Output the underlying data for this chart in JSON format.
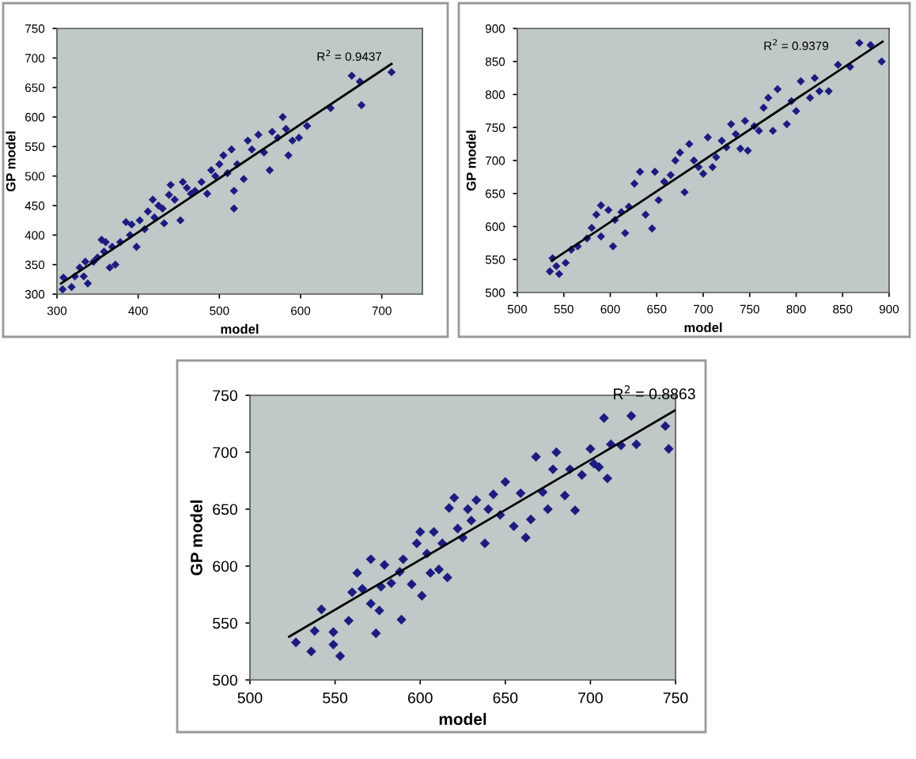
{
  "chart_data": [
    {
      "type": "scatter",
      "xlabel": "model",
      "ylabel": "GP model",
      "xlim": [
        300,
        750
      ],
      "ylim": [
        300,
        750
      ],
      "xticks": [
        300,
        400,
        500,
        600,
        700
      ],
      "yticks": [
        300,
        350,
        400,
        450,
        500,
        550,
        600,
        650,
        700,
        750
      ],
      "grid": false,
      "legend": false,
      "marker": "diamond",
      "annotations": [
        "R$^{2}$ = 0.9437"
      ],
      "series": [
        {
          "color": "#1c1c80",
          "x": [
            308,
            307,
            318,
            322,
            328,
            333,
            338,
            335,
            345,
            350,
            355,
            360,
            358,
            365,
            368,
            372,
            378,
            385,
            390,
            392,
            398,
            402,
            408,
            412,
            418,
            420,
            425,
            430,
            432,
            438,
            440,
            445,
            452,
            455,
            460,
            465,
            470,
            478,
            485,
            490,
            495,
            500,
            505,
            510,
            515,
            518,
            518,
            522,
            530,
            535,
            540,
            548,
            555,
            562,
            565,
            572,
            578,
            582,
            585,
            590,
            598,
            608,
            637,
            663,
            673,
            675,
            712
          ],
          "values": [
            328,
            308,
            312,
            330,
            345,
            330,
            318,
            355,
            355,
            362,
            392,
            388,
            372,
            345,
            380,
            350,
            388,
            422,
            400,
            418,
            380,
            425,
            410,
            440,
            460,
            430,
            450,
            445,
            420,
            468,
            485,
            460,
            425,
            490,
            480,
            470,
            475,
            490,
            470,
            510,
            500,
            520,
            535,
            505,
            545,
            475,
            445,
            520,
            495,
            560,
            545,
            570,
            540,
            510,
            575,
            565,
            600,
            580,
            535,
            560,
            565,
            585,
            615,
            670,
            660,
            620,
            676
          ]
        },
        {
          "type": "line",
          "color": "#000000",
          "marker": "none",
          "x": [
            305,
            712
          ],
          "values": [
            318,
            690
          ]
        }
      ]
    },
    {
      "type": "scatter",
      "xlabel": "model",
      "ylabel": "GP model",
      "xlim": [
        500,
        900
      ],
      "ylim": [
        500,
        900
      ],
      "xticks": [
        500,
        550,
        600,
        650,
        700,
        750,
        800,
        850,
        900
      ],
      "yticks": [
        500,
        550,
        600,
        650,
        700,
        750,
        800,
        850,
        900
      ],
      "grid": false,
      "legend": false,
      "marker": "diamond",
      "annotations": [
        "R$^{2}$ = 0.9379"
      ],
      "series": [
        {
          "color": "#1c1c80",
          "x": [
            535,
            538,
            542,
            545,
            552,
            558,
            565,
            575,
            580,
            585,
            590,
            590,
            598,
            603,
            605,
            612,
            616,
            620,
            626,
            632,
            638,
            645,
            648,
            652,
            658,
            665,
            670,
            675,
            680,
            685,
            690,
            695,
            700,
            705,
            710,
            714,
            720,
            725,
            730,
            735,
            740,
            745,
            748,
            755,
            760,
            765,
            770,
            775,
            780,
            790,
            795,
            800,
            805,
            815,
            820,
            825,
            835,
            845,
            858,
            868,
            880,
            892
          ],
          "values": [
            532,
            552,
            540,
            528,
            545,
            565,
            570,
            582,
            598,
            618,
            632,
            585,
            625,
            570,
            610,
            622,
            590,
            630,
            665,
            683,
            618,
            597,
            683,
            640,
            668,
            678,
            700,
            712,
            652,
            725,
            700,
            690,
            680,
            735,
            690,
            705,
            730,
            720,
            755,
            740,
            718,
            760,
            715,
            752,
            745,
            780,
            795,
            745,
            808,
            755,
            790,
            775,
            820,
            795,
            825,
            805,
            805,
            845,
            842,
            878,
            875,
            850
          ]
        },
        {
          "type": "line",
          "color": "#000000",
          "marker": "none",
          "x": [
            537,
            893
          ],
          "values": [
            548,
            880
          ]
        }
      ]
    },
    {
      "type": "scatter",
      "xlabel": "model",
      "ylabel": "GP model",
      "xlim": [
        500,
        750
      ],
      "ylim": [
        500,
        750
      ],
      "xticks": [
        500,
        550,
        600,
        650,
        700,
        750
      ],
      "yticks": [
        500,
        550,
        600,
        650,
        700,
        750
      ],
      "grid": false,
      "legend": false,
      "marker": "diamond",
      "annotations": [
        "R$^{2}$ = 0.8863"
      ],
      "series": [
        {
          "color": "#1c1c80",
          "x": [
            527,
            536,
            538,
            542,
            549,
            549,
            553,
            558,
            560,
            563,
            566,
            571,
            571,
            574,
            576,
            577,
            579,
            583,
            588,
            589,
            590,
            595,
            598,
            600,
            601,
            604,
            606,
            608,
            611,
            613,
            616,
            617,
            620,
            622,
            625,
            628,
            630,
            633,
            638,
            640,
            643,
            647,
            650,
            655,
            659,
            662,
            665,
            668,
            672,
            675,
            678,
            680,
            685,
            688,
            691,
            695,
            700,
            702,
            705,
            708,
            710,
            712,
            718,
            724,
            727,
            744,
            746
          ],
          "values": [
            533,
            525,
            543,
            562,
            542,
            531,
            521,
            552,
            577,
            594,
            580,
            606,
            567,
            541,
            561,
            582,
            601,
            585,
            595,
            553,
            606,
            584,
            620,
            630,
            574,
            611,
            594,
            630,
            597,
            620,
            590,
            651,
            660,
            633,
            625,
            650,
            640,
            658,
            620,
            650,
            663,
            645,
            674,
            635,
            664,
            625,
            641,
            696,
            665,
            650,
            685,
            700,
            662,
            685,
            649,
            680,
            703,
            690,
            687,
            730,
            677,
            707,
            706,
            732,
            707,
            723,
            703
          ]
        },
        {
          "type": "line",
          "color": "#000000",
          "marker": "none",
          "x": [
            523,
            750
          ],
          "values": [
            538,
            737
          ]
        }
      ]
    }
  ]
}
